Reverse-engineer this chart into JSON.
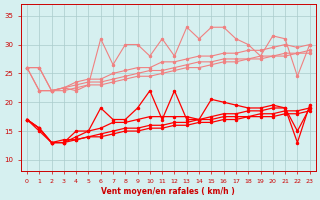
{
  "x": [
    0,
    1,
    2,
    3,
    4,
    5,
    6,
    7,
    8,
    9,
    10,
    11,
    12,
    13,
    14,
    15,
    16,
    17,
    18,
    19,
    20,
    21,
    22,
    23
  ],
  "series_salmon": [
    [
      26.0,
      26.0,
      22.0,
      22.5,
      22.0,
      23.0,
      31.0,
      26.5,
      30.0,
      30.0,
      28.0,
      31.0,
      28.0,
      33.0,
      31.0,
      33.0,
      33.0,
      31.0,
      30.0,
      28.0,
      31.5,
      31.0,
      24.5,
      30.0
    ],
    [
      26.0,
      26.0,
      22.0,
      22.5,
      23.5,
      24.0,
      24.0,
      25.0,
      25.5,
      26.0,
      26.0,
      27.0,
      27.0,
      27.5,
      28.0,
      28.0,
      28.5,
      28.5,
      29.0,
      29.0,
      29.5,
      30.0,
      29.5,
      30.0
    ],
    [
      26.0,
      22.0,
      22.0,
      22.5,
      23.0,
      23.5,
      23.5,
      24.0,
      24.5,
      25.0,
      25.5,
      25.5,
      26.0,
      26.5,
      27.0,
      27.0,
      27.5,
      27.5,
      27.5,
      28.0,
      28.0,
      28.5,
      28.5,
      29.0
    ],
    [
      26.0,
      22.0,
      22.0,
      22.0,
      22.5,
      23.0,
      23.0,
      23.5,
      24.0,
      24.5,
      24.5,
      25.0,
      25.5,
      26.0,
      26.0,
      26.5,
      27.0,
      27.0,
      27.5,
      27.5,
      28.0,
      28.0,
      28.5,
      28.5
    ]
  ],
  "series_red": [
    [
      17.0,
      15.0,
      13.0,
      13.0,
      15.0,
      15.0,
      19.0,
      17.0,
      17.0,
      19.0,
      22.0,
      17.0,
      22.0,
      17.0,
      17.0,
      20.5,
      20.0,
      19.5,
      19.0,
      19.0,
      19.5,
      19.0,
      13.0,
      19.5
    ],
    [
      17.0,
      15.5,
      13.0,
      13.0,
      14.0,
      15.0,
      15.5,
      16.5,
      16.5,
      17.0,
      17.5,
      17.5,
      17.5,
      17.5,
      17.0,
      17.5,
      18.0,
      18.0,
      18.5,
      18.5,
      19.0,
      19.0,
      15.0,
      19.0
    ],
    [
      17.0,
      15.5,
      13.0,
      13.0,
      13.5,
      14.0,
      14.5,
      15.0,
      15.5,
      15.5,
      16.0,
      16.0,
      16.5,
      16.5,
      17.0,
      17.0,
      17.5,
      17.5,
      17.5,
      18.0,
      18.0,
      18.5,
      18.5,
      19.0
    ],
    [
      17.0,
      15.5,
      13.0,
      13.5,
      13.5,
      14.0,
      14.0,
      14.5,
      15.0,
      15.0,
      15.5,
      15.5,
      16.0,
      16.0,
      16.5,
      16.5,
      17.0,
      17.0,
      17.5,
      17.5,
      17.5,
      18.0,
      18.0,
      18.5
    ]
  ],
  "color_salmon": "#f08080",
  "color_red": "#ff0000",
  "bg_color": "#d6f0f0",
  "grid_color": "#aacccc",
  "xlabel": "Vent moyen/en rafales ( km/h )",
  "ylabel": "",
  "xlim": [
    -0.5,
    23.5
  ],
  "ylim": [
    8,
    37
  ],
  "yticks": [
    10,
    15,
    20,
    25,
    30,
    35
  ],
  "xticks": [
    0,
    1,
    2,
    3,
    4,
    5,
    6,
    7,
    8,
    9,
    10,
    11,
    12,
    13,
    14,
    15,
    16,
    17,
    18,
    19,
    20,
    21,
    22,
    23
  ]
}
